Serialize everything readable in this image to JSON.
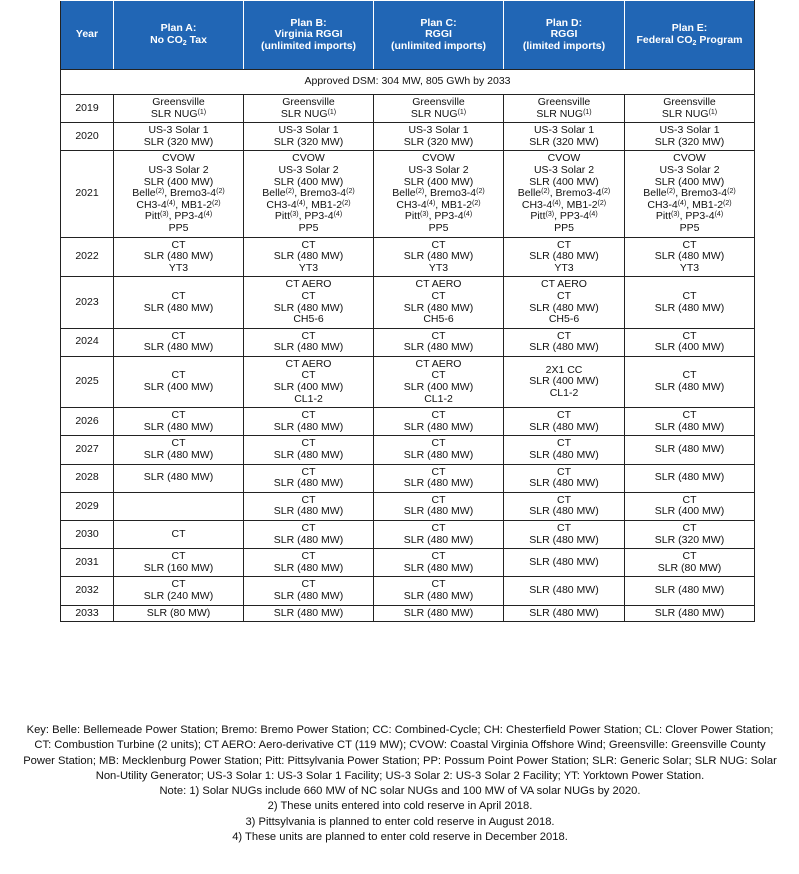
{
  "table": {
    "header": [
      [
        "Year"
      ],
      [
        "Plan A:",
        [
          "No CO",
          "2",
          " Tax"
        ]
      ],
      [
        "Plan B:",
        "Virginia RGGI",
        "(unlimited imports)"
      ],
      [
        "Plan C:",
        "RGGI",
        "(unlimited imports)"
      ],
      [
        "Plan D:",
        "RGGI",
        "(limited imports)"
      ],
      [
        "Plan E:",
        [
          "Federal CO",
          "2",
          " Program"
        ]
      ]
    ],
    "dsm": "Approved DSM: 304 MW, 805 GWh by 2033",
    "rows": [
      {
        "year": "2019",
        "cells": [
          [
            "Greensville",
            [
              "SLR NUG",
              "(1)"
            ]
          ],
          [
            "Greensville",
            [
              "SLR NUG",
              "(1)"
            ]
          ],
          [
            "Greensville",
            [
              "SLR NUG",
              "(1)"
            ]
          ],
          [
            "Greensville",
            [
              "SLR NUG",
              "(1)"
            ]
          ],
          [
            "Greensville",
            [
              "SLR NUG",
              "(1)"
            ]
          ]
        ]
      },
      {
        "year": "2020",
        "cells": [
          [
            "US-3 Solar 1",
            "SLR (320 MW)"
          ],
          [
            "US-3 Solar 1",
            "SLR (320 MW)"
          ],
          [
            "US-3 Solar 1",
            "SLR (320 MW)"
          ],
          [
            "US-3 Solar 1",
            "SLR (320 MW)"
          ],
          [
            "US-3 Solar 1",
            "SLR (320 MW)"
          ]
        ]
      },
      {
        "year": "2021",
        "cells": [
          [
            "CVOW",
            "US-3 Solar 2",
            "SLR (400 MW)",
            [
              "Belle",
              "(2)",
              ", Bremo3-4",
              "(2)"
            ],
            [
              "CH3-4",
              "(4)",
              ", MB1-2",
              "(2)"
            ],
            [
              "Pitt",
              "(3)",
              ", PP3-4",
              "(4)"
            ],
            "PP5"
          ],
          [
            "CVOW",
            "US-3 Solar 2",
            "SLR (400 MW)",
            [
              "Belle",
              "(2)",
              ", Bremo3-4",
              "(2)"
            ],
            [
              "CH3-4",
              "(4)",
              ", MB1-2",
              "(2)"
            ],
            [
              "Pitt",
              "(3)",
              ", PP3-4",
              "(4)"
            ],
            "PP5"
          ],
          [
            "CVOW",
            "US-3 Solar 2",
            "SLR (400 MW)",
            [
              "Belle",
              "(2)",
              ", Bremo3-4",
              "(2)"
            ],
            [
              "CH3-4",
              "(4)",
              ", MB1-2",
              "(2)"
            ],
            [
              "Pitt",
              "(3)",
              ", PP3-4",
              "(4)"
            ],
            "PP5"
          ],
          [
            "CVOW",
            "US-3 Solar 2",
            "SLR (400 MW)",
            [
              "Belle",
              "(2)",
              ", Bremo3-4",
              "(2)"
            ],
            [
              "CH3-4",
              "(4)",
              ", MB1-2",
              "(2)"
            ],
            [
              "Pitt",
              "(3)",
              ", PP3-4",
              "(4)"
            ],
            "PP5"
          ],
          [
            "CVOW",
            "US-3 Solar 2",
            "SLR (400 MW)",
            [
              "Belle",
              "(2)",
              ", Bremo3-4",
              "(2)"
            ],
            [
              "CH3-4",
              "(4)",
              ", MB1-2",
              "(2)"
            ],
            [
              "Pitt",
              "(3)",
              ", PP3-4",
              "(4)"
            ],
            "PP5"
          ]
        ]
      },
      {
        "year": "2022",
        "cells": [
          [
            "CT",
            "SLR (480 MW)",
            "YT3"
          ],
          [
            "CT",
            "SLR (480 MW)",
            "YT3"
          ],
          [
            "CT",
            "SLR (480 MW)",
            "YT3"
          ],
          [
            "CT",
            "SLR (480 MW)",
            "YT3"
          ],
          [
            "CT",
            "SLR (480 MW)",
            "YT3"
          ]
        ]
      },
      {
        "year": "2023",
        "cells": [
          [
            "CT",
            "SLR (480 MW)"
          ],
          [
            "CT AERO",
            "CT",
            "SLR (480 MW)",
            "CH5-6"
          ],
          [
            "CT AERO",
            "CT",
            "SLR (480 MW)",
            "CH5-6"
          ],
          [
            "CT AERO",
            "CT",
            "SLR (480 MW)",
            "CH5-6"
          ],
          [
            "CT",
            "SLR (480 MW)"
          ]
        ]
      },
      {
        "year": "2024",
        "cells": [
          [
            "CT",
            "SLR (480 MW)"
          ],
          [
            "CT",
            "SLR (480 MW)"
          ],
          [
            "CT",
            "SLR (480 MW)"
          ],
          [
            "CT",
            "SLR (480 MW)"
          ],
          [
            "CT",
            "SLR (400 MW)"
          ]
        ]
      },
      {
        "year": "2025",
        "cells": [
          [
            "CT",
            "SLR (400 MW)"
          ],
          [
            "CT AERO",
            "CT",
            "SLR (400 MW)",
            "CL1-2"
          ],
          [
            "CT AERO",
            "CT",
            "SLR (400 MW)",
            "CL1-2"
          ],
          [
            "2X1 CC",
            "SLR (400 MW)",
            "CL1-2"
          ],
          [
            "CT",
            "SLR (480 MW)"
          ]
        ]
      },
      {
        "year": "2026",
        "cells": [
          [
            "CT",
            "SLR (480 MW)"
          ],
          [
            "CT",
            "SLR (480 MW)"
          ],
          [
            "CT",
            "SLR (480 MW)"
          ],
          [
            "CT",
            "SLR (480 MW)"
          ],
          [
            "CT",
            "SLR (480 MW)"
          ]
        ]
      },
      {
        "year": "2027",
        "cells": [
          [
            "CT",
            "SLR (480 MW)"
          ],
          [
            "CT",
            "SLR (480 MW)"
          ],
          [
            "CT",
            "SLR (480 MW)"
          ],
          [
            "CT",
            "SLR (480 MW)"
          ],
          [
            "SLR (480 MW)"
          ]
        ]
      },
      {
        "year": "2028",
        "cells": [
          [
            "SLR (480 MW)"
          ],
          [
            "CT",
            "SLR (480 MW)"
          ],
          [
            "CT",
            "SLR (480 MW)"
          ],
          [
            "CT",
            "SLR (480 MW)"
          ],
          [
            "SLR (480 MW)"
          ]
        ]
      },
      {
        "year": "2029",
        "cells": [
          [],
          [
            "CT",
            "SLR (480 MW)"
          ],
          [
            "CT",
            "SLR (480 MW)"
          ],
          [
            "CT",
            "SLR (480 MW)"
          ],
          [
            "CT",
            "SLR (400 MW)"
          ]
        ]
      },
      {
        "year": "2030",
        "cells": [
          [
            "CT"
          ],
          [
            "CT",
            "SLR (480 MW)"
          ],
          [
            "CT",
            "SLR (480 MW)"
          ],
          [
            "CT",
            "SLR (480 MW)"
          ],
          [
            "CT",
            "SLR (320 MW)"
          ]
        ]
      },
      {
        "year": "2031",
        "cells": [
          [
            "CT",
            "SLR (160 MW)"
          ],
          [
            "CT",
            "SLR (480 MW)"
          ],
          [
            "CT",
            "SLR (480 MW)"
          ],
          [
            "SLR (480 MW)"
          ],
          [
            "CT",
            "SLR (80 MW)"
          ]
        ]
      },
      {
        "year": "2032",
        "cells": [
          [
            "CT",
            "SLR (240 MW)"
          ],
          [
            "CT",
            "SLR (480 MW)"
          ],
          [
            "CT",
            "SLR (480 MW)"
          ],
          [
            "SLR (480 MW)"
          ],
          [
            "SLR (480 MW)"
          ]
        ]
      },
      {
        "year": "2033",
        "cells": [
          [
            "SLR (80 MW)"
          ],
          [
            "SLR (480 MW)"
          ],
          [
            "SLR (480 MW)"
          ],
          [
            "SLR (480 MW)"
          ],
          [
            "SLR (480 MW)"
          ]
        ]
      }
    ]
  },
  "footer": {
    "key": "Key: Belle: Bellemeade Power Station; Bremo: Bremo Power Station; CC: Combined-Cycle; CH: Chesterfield Power Station; CL: Clover Power Station; CT: Combustion Turbine (2 units); CT AERO: Aero-derivative CT (119 MW); CVOW: Coastal Virginia Offshore Wind; Greensville: Greensville County Power Station; MB: Mecklenburg Power Station; Pitt: Pittsylvania Power Station; PP: Possum Point Power Station; SLR: Generic Solar; SLR NUG: Solar Non-Utility Generator; US-3 Solar 1: US-3 Solar 1 Facility; US-3 Solar 2: US-3 Solar 2 Facility; YT: Yorktown Power Station.",
    "notes": [
      "Note: 1) Solar NUGs include 660 MW of NC solar NUGs and 100 MW of VA solar NUGs by 2020.",
      "2) These units entered into cold reserve in April 2018.",
      "3) Pittsylvania is planned to enter cold reserve in August 2018.",
      "4) These units are planned to enter cold reserve in December 2018."
    ]
  }
}
